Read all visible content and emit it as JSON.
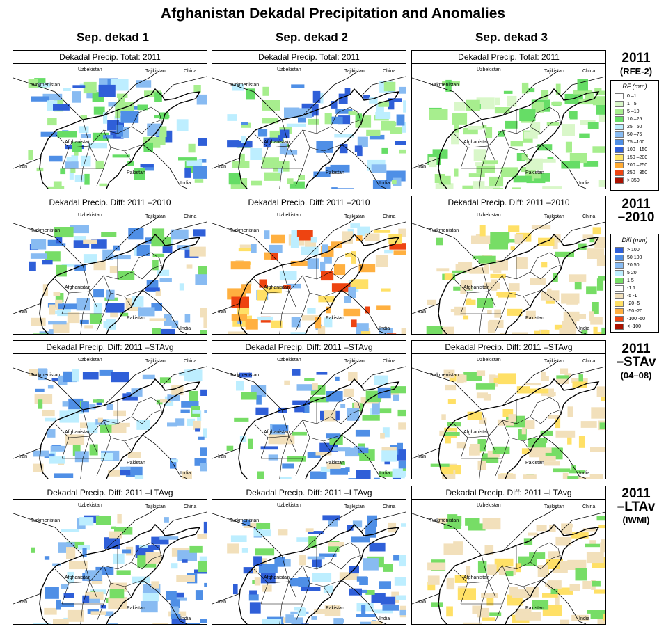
{
  "title": "Afghanistan Dekadal Precipitation and Anomalies",
  "columns": [
    "Sep. dekad 1",
    "Sep. dekad 2",
    "Sep. dekad 3"
  ],
  "rows": [
    {
      "head": "2011",
      "sub": "(RFE-2)",
      "panel_title": "Dekadal Precip. Total: 2011",
      "kind": "total"
    },
    {
      "head": "2011",
      "head2": "–2010",
      "sub": "",
      "panel_title": "Dekadal Precip. Diff:  2011 –2010",
      "kind": "diff"
    },
    {
      "head": "2011",
      "head2": "–STAv",
      "sub": "(04–08)",
      "panel_title": "Dekadal Precip. Diff:  2011 –STAvg",
      "kind": "diff"
    },
    {
      "head": "2011",
      "head2": "–LTAv",
      "sub": "(IWMI)",
      "panel_title": "Dekadal Precip. Diff:  2011 –LTAvg",
      "kind": "diff"
    }
  ],
  "map_labels": {
    "uzbekistan": "Uzbekistan",
    "tajikistan": "Tajikistan",
    "china": "China",
    "turkmenistan": "Turkmenistan",
    "afghanistan": "Afghanistan",
    "iran": "Iran",
    "pakistan": "Pakistan",
    "india": "India"
  },
  "legend_rf": {
    "title": "RF (mm)",
    "items": [
      {
        "label": "0 –1",
        "color": "#ffffff"
      },
      {
        "label": "1 –5",
        "color": "#d9f7c9"
      },
      {
        "label": "5 –10",
        "color": "#a7ee8e"
      },
      {
        "label": "10 –25",
        "color": "#66dd66"
      },
      {
        "label": "25 –50",
        "color": "#bdeeff"
      },
      {
        "label": "50 –75",
        "color": "#88bbf2"
      },
      {
        "label": "75 –100",
        "color": "#4f8fe6"
      },
      {
        "label": "100 –150",
        "color": "#2f5fd8"
      },
      {
        "label": "150 –200",
        "color": "#ffe566"
      },
      {
        "label": "200 –250",
        "color": "#ffaa33"
      },
      {
        "label": "250 –350",
        "color": "#ee4411"
      },
      {
        "label": "> 350",
        "color": "#aa1100"
      }
    ]
  },
  "legend_diff": {
    "title": "Diff (mm)",
    "items": [
      {
        "label": "> 100",
        "color": "#2f5fd8"
      },
      {
        "label": "50  100",
        "color": "#4f8fe6"
      },
      {
        "label": "20  50",
        "color": "#88bbf2"
      },
      {
        "label": "5  20",
        "color": "#bdeeff"
      },
      {
        "label": "1  5",
        "color": "#77dd66"
      },
      {
        "label": "-1  1",
        "color": "#ffffff"
      },
      {
        "label": "-5  -1",
        "color": "#f2e0bb"
      },
      {
        "label": "-20  -5",
        "color": "#ffe066"
      },
      {
        "label": "-50  -20",
        "color": "#ffb040"
      },
      {
        "label": "-100  -50",
        "color": "#ee4411"
      },
      {
        "label": "< -100",
        "color": "#aa1100"
      }
    ]
  },
  "palette": {
    "border": "#000000",
    "background": "#ffffff"
  }
}
